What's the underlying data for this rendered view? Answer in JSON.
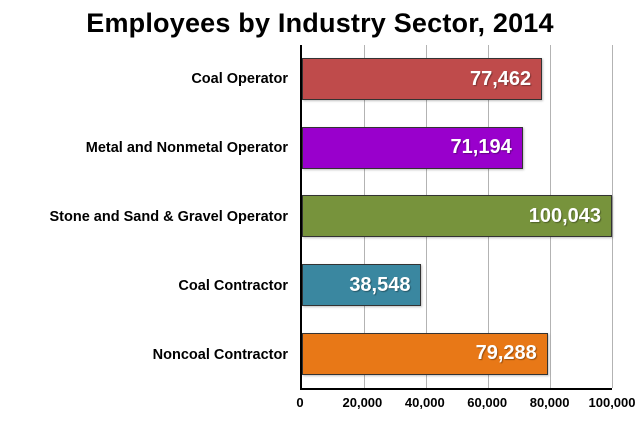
{
  "title": "Employees by Industry Sector, 2014",
  "chart_data": {
    "type": "bar",
    "orientation": "horizontal",
    "title": "Employees by Industry Sector, 2014",
    "categories": [
      "Coal Operator",
      "Metal and Nonmetal Operator",
      "Stone and Sand & Gravel Operator",
      "Coal Contractor",
      "Noncoal Contractor"
    ],
    "values": [
      77462,
      71194,
      100043,
      38548,
      79288
    ],
    "value_labels": [
      "77,462",
      "71,194",
      "100,043",
      "38,548",
      "79,288"
    ],
    "bar_colors": [
      "#BF4B4B",
      "#9900CC",
      "#77933C",
      "#3A87A0",
      "#E87817"
    ],
    "xlim": [
      0,
      100000
    ],
    "x_ticks": [
      "0",
      "20,000",
      "40,000",
      "60,000",
      "80,000",
      "100,000"
    ],
    "x_tick_values": [
      0,
      20000,
      40000,
      60000,
      80000,
      100000
    ],
    "grid": true,
    "legend": false,
    "xlabel": "",
    "ylabel": ""
  }
}
